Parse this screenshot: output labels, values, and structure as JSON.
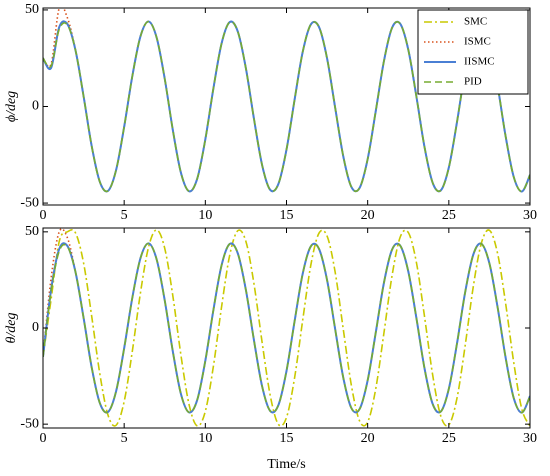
{
  "chart_data": [
    {
      "type": "line",
      "ylabel": "ϕ/deg",
      "x": [
        0,
        0.5,
        1,
        1.5,
        2,
        2.5,
        3,
        3.5,
        4,
        4.5,
        5,
        5.5,
        6,
        6.5,
        7,
        7.5,
        8,
        8.5,
        9,
        9.5,
        10,
        10.5,
        11,
        11.5,
        12,
        12.5,
        13,
        13.5,
        14,
        14.5,
        15,
        15.5,
        16,
        16.5,
        17,
        17.5,
        18,
        18.5,
        19,
        19.5,
        20,
        20.5,
        21,
        21.5,
        22,
        22.5,
        23,
        23.5,
        24,
        24.5,
        25,
        25.5,
        26,
        26.5,
        27,
        27.5,
        28,
        28.5,
        29,
        29.5,
        30
      ],
      "xlim": [
        0,
        30
      ],
      "xticks": [
        0,
        5,
        10,
        15,
        20,
        25,
        30
      ],
      "ylim": [
        -51,
        51
      ],
      "yticks": [
        -50,
        0,
        50
      ],
      "legend": "upper right",
      "series": [
        {
          "name": "SMC",
          "color": "#c9c900",
          "line_style": "dashdot",
          "values": [
            25,
            21,
            41,
            43,
            29.2,
            5.3,
            -20.5,
            -39.0,
            -43.7,
            -33.0,
            -10.5,
            15.6,
            36.2,
            44.0,
            35.7,
            14.3,
            -12.3,
            -34.4,
            -43.9,
            -37.4,
            -17.0,
            9.5,
            32.6,
            43.7,
            38.8,
            19.7,
            -6.6,
            -30.4,
            -43.2,
            -40.1,
            -22.3,
            3.6,
            28.3,
            42.5,
            41.2,
            24.9,
            -0.7,
            -25.9,
            -41.7,
            -42.2,
            -27.2,
            -2.3,
            23.4,
            40.7,
            42.9,
            29.5,
            5.3,
            -20.9,
            -39.4,
            -43.5,
            -31.6,
            -8.2,
            18.3,
            38.0,
            43.8,
            33.6,
            11.0,
            -15.5,
            -36.5,
            -44.0,
            -35.4
          ]
        },
        {
          "name": "ISMC",
          "color": "#d9531e",
          "line_style": "dotted",
          "values": [
            25,
            22,
            51,
            46,
            29.2,
            5.3,
            -20.5,
            -39.0,
            -43.7,
            -33.0,
            -10.5,
            15.6,
            36.2,
            44.0,
            35.7,
            14.3,
            -12.3,
            -34.4,
            -43.9,
            -37.4,
            -17.0,
            9.5,
            32.6,
            43.7,
            38.8,
            19.7,
            -6.6,
            -30.4,
            -43.2,
            -40.1,
            -22.3,
            3.6,
            28.3,
            42.5,
            41.2,
            24.9,
            -0.7,
            -25.9,
            -41.7,
            -42.2,
            -27.2,
            -2.3,
            23.4,
            40.7,
            42.9,
            29.5,
            5.3,
            -20.9,
            -39.4,
            -43.5,
            -31.6,
            -8.2,
            18.3,
            38.0,
            43.8,
            33.6,
            11.0,
            -15.5,
            -36.5,
            -44.0,
            -35.4
          ]
        },
        {
          "name": "IISMC",
          "color": "#4a7fd4",
          "line_style": "solid",
          "values": [
            25,
            20,
            41.1,
            42.7,
            29.2,
            5.3,
            -20.5,
            -39.0,
            -43.7,
            -33.0,
            -10.5,
            15.6,
            36.2,
            44.0,
            35.7,
            14.3,
            -12.3,
            -34.4,
            -43.9,
            -37.4,
            -17.0,
            9.5,
            32.6,
            43.7,
            38.8,
            19.7,
            -6.6,
            -30.4,
            -43.2,
            -40.1,
            -22.3,
            3.6,
            28.3,
            42.5,
            41.2,
            24.9,
            -0.7,
            -25.9,
            -41.7,
            -42.2,
            -27.2,
            -2.3,
            23.4,
            40.7,
            42.9,
            29.5,
            5.3,
            -20.9,
            -39.4,
            -43.5,
            -31.6,
            -8.2,
            18.3,
            38.0,
            43.8,
            33.6,
            11.0,
            -15.5,
            -36.5,
            -44.0,
            -35.4
          ]
        },
        {
          "name": "PID",
          "color": "#77ac30",
          "line_style": "dashed",
          "values": [
            25,
            21,
            40,
            42.3,
            29.2,
            5.3,
            -20.5,
            -39.0,
            -43.7,
            -33.0,
            -10.5,
            15.6,
            36.2,
            44.0,
            35.7,
            14.3,
            -12.3,
            -34.4,
            -43.9,
            -37.4,
            -17.0,
            9.5,
            32.6,
            43.7,
            38.8,
            19.7,
            -6.6,
            -30.4,
            -43.2,
            -40.1,
            -22.3,
            3.6,
            28.3,
            42.5,
            41.2,
            24.9,
            -0.7,
            -25.9,
            -41.7,
            -42.2,
            -27.2,
            -2.3,
            23.4,
            40.7,
            42.9,
            29.5,
            5.3,
            -20.9,
            -39.4,
            -43.5,
            -31.6,
            -8.2,
            18.3,
            38.0,
            43.8,
            33.6,
            11.0,
            -15.5,
            -36.5,
            -44.0,
            -35.4
          ]
        }
      ]
    },
    {
      "type": "line",
      "ylabel": "θ/deg",
      "xlabel": "Time/s",
      "x": [
        0,
        0.5,
        1,
        1.5,
        2,
        2.5,
        3,
        3.5,
        4,
        4.5,
        5,
        5.5,
        6,
        6.5,
        7,
        7.5,
        8,
        8.5,
        9,
        9.5,
        10,
        10.5,
        11,
        11.5,
        12,
        12.5,
        13,
        13.5,
        14,
        14.5,
        15,
        15.5,
        16,
        16.5,
        17,
        17.5,
        18,
        18.5,
        19,
        19.5,
        20,
        20.5,
        21,
        21.5,
        22,
        22.5,
        23,
        23.5,
        24,
        24.5,
        25,
        25.5,
        26,
        26.5,
        27,
        27.5,
        28,
        28.5,
        29,
        29.5,
        30
      ],
      "xlim": [
        0,
        30
      ],
      "xticks": [
        0,
        5,
        10,
        15,
        20,
        25,
        30
      ],
      "ylim": [
        -52,
        52
      ],
      "yticks": [
        -50,
        0,
        50
      ],
      "series": [
        {
          "color": "#c9c900",
          "line_style": "dashdot",
          "values": [
            -15,
            15,
            45,
            50,
            49.5,
            33.8,
            6.1,
            -23.8,
            -45.2,
            -50.6,
            -38.2,
            -12.2,
            18.1,
            42.0,
            51.0,
            41.4,
            16.6,
            -14.3,
            -39.9,
            -50.9,
            -43.3,
            -19.7,
            11.0,
            37.8,
            50.6,
            45.0,
            22.8,
            -7.6,
            -35.2,
            -50.1,
            -46.5,
            -25.8,
            4.2,
            32.8,
            49.3,
            47.8,
            28.9,
            -0.8,
            -30.0,
            -48.3,
            -48.9,
            -31.5,
            -2.7,
            27.1,
            47.2,
            49.7,
            34.2,
            6.1,
            -24.2,
            -45.7,
            -50.4,
            -36.6,
            -9.5,
            21.2,
            44.0,
            50.8,
            38.9,
            12.7,
            -18.0,
            -42.3,
            -51.0
          ]
        },
        {
          "color": "#d9531e",
          "line_style": "dotted",
          "values": [
            -15,
            26,
            50,
            47,
            29.2,
            5.3,
            -20.5,
            -39.0,
            -43.7,
            -33.0,
            -10.5,
            15.6,
            36.2,
            44.0,
            35.7,
            14.3,
            -12.3,
            -34.4,
            -43.9,
            -37.4,
            -17.0,
            9.5,
            32.6,
            43.7,
            38.8,
            19.7,
            -6.6,
            -30.4,
            -43.2,
            -40.1,
            -22.3,
            3.6,
            28.3,
            42.5,
            41.2,
            24.9,
            -0.7,
            -25.9,
            -41.7,
            -42.2,
            -27.2,
            -2.3,
            23.4,
            40.7,
            42.9,
            29.5,
            5.3,
            -20.9,
            -39.4,
            -43.5,
            -31.6,
            -8.2,
            18.3,
            38.0,
            43.8,
            33.6,
            11.0,
            -15.5,
            -36.5,
            -44.0,
            -35.4
          ]
        },
        {
          "color": "#4a7fd4",
          "line_style": "solid",
          "values": [
            -15,
            20,
            41.1,
            42.7,
            29.2,
            5.3,
            -20.5,
            -39.0,
            -43.7,
            -33.0,
            -10.5,
            15.6,
            36.2,
            44.0,
            35.7,
            14.3,
            -12.3,
            -34.4,
            -43.9,
            -37.4,
            -17.0,
            9.5,
            32.6,
            43.7,
            38.8,
            19.7,
            -6.6,
            -30.4,
            -43.2,
            -40.1,
            -22.3,
            3.6,
            28.3,
            42.5,
            41.2,
            24.9,
            -0.7,
            -25.9,
            -41.7,
            -42.2,
            -27.2,
            -2.3,
            23.4,
            40.7,
            42.9,
            29.5,
            5.3,
            -20.9,
            -39.4,
            -43.5,
            -31.6,
            -8.2,
            18.3,
            38.0,
            43.8,
            33.6,
            11.0,
            -15.5,
            -36.5,
            -44.0,
            -35.4
          ]
        },
        {
          "color": "#77ac30",
          "line_style": "dashed",
          "values": [
            -15,
            19,
            40,
            42.3,
            29.2,
            5.3,
            -20.5,
            -39.0,
            -43.7,
            -33.0,
            -10.5,
            15.6,
            36.2,
            44.0,
            35.7,
            14.3,
            -12.3,
            -34.4,
            -43.9,
            -37.4,
            -17.0,
            9.5,
            32.6,
            43.7,
            38.8,
            19.7,
            -6.6,
            -30.4,
            -43.2,
            -40.1,
            -22.3,
            3.6,
            28.3,
            42.5,
            41.2,
            24.9,
            -0.7,
            -25.9,
            -41.7,
            -42.2,
            -27.2,
            -2.3,
            23.4,
            40.7,
            42.9,
            29.5,
            5.3,
            -20.9,
            -39.4,
            -43.5,
            -31.6,
            -8.2,
            18.3,
            38.0,
            43.8,
            33.6,
            11.0,
            -15.5,
            -36.5,
            -44.0,
            -35.4
          ]
        }
      ]
    }
  ]
}
